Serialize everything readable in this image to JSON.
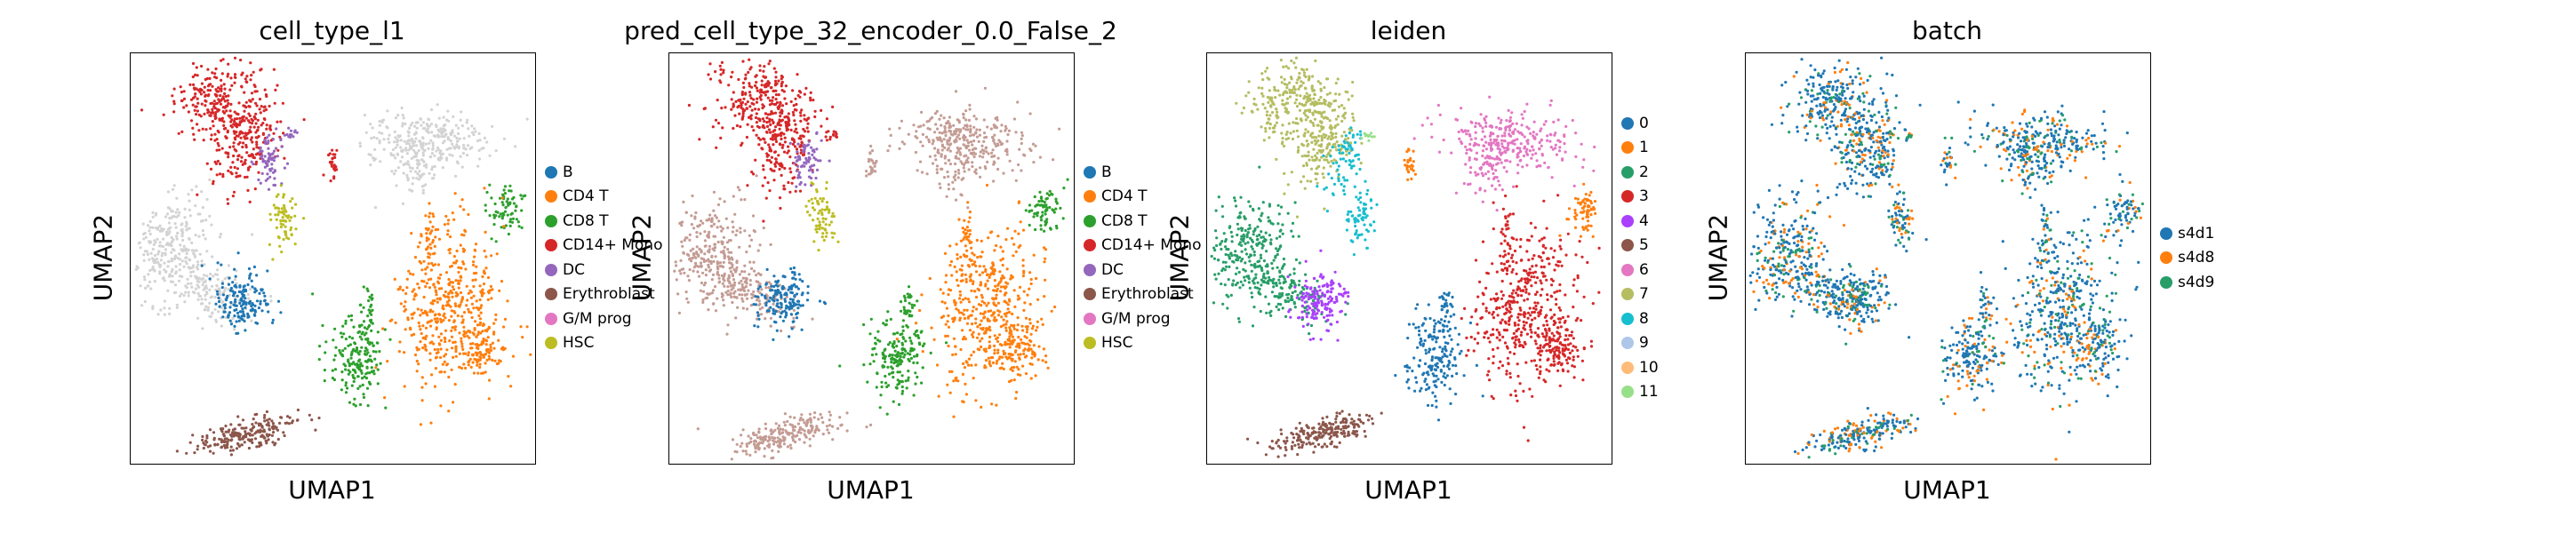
{
  "chart_data": [
    {
      "type": "scatter",
      "title": "cell_type_l1",
      "xlabel": "UMAP1",
      "ylabel": "UMAP2",
      "legend": [
        "B",
        "CD4 T",
        "CD8 T",
        "CD14+ Mono",
        "DC",
        "Erythroblast",
        "G/M prog",
        "HSC"
      ],
      "colors": [
        "#1f77b4",
        "#ff7f0e",
        "#2ca02c",
        "#d62728",
        "#9467bd",
        "#8c564b",
        "#e377c2",
        "#bcbd22"
      ],
      "unlabeled_color": "#d3d3d3"
    },
    {
      "type": "scatter",
      "title": "pred_cell_type_32_encoder_0.0_False_2",
      "xlabel": "UMAP1",
      "ylabel": "UMAP2",
      "legend": [
        "B",
        "CD4 T",
        "CD8 T",
        "CD14+ Mono",
        "DC",
        "Erythroblast",
        "G/M prog",
        "HSC"
      ],
      "colors": [
        "#1f77b4",
        "#ff7f0e",
        "#2ca02c",
        "#d62728",
        "#9467bd",
        "#8c564b",
        "#e377c2",
        "#bcbd22"
      ],
      "unlabeled_color": "#c49c94"
    },
    {
      "type": "scatter",
      "title": "leiden",
      "xlabel": "UMAP1",
      "ylabel": "UMAP2",
      "legend": [
        "0",
        "1",
        "2",
        "3",
        "4",
        "5",
        "6",
        "7",
        "8",
        "9",
        "10",
        "11"
      ],
      "colors": [
        "#1f77b4",
        "#ff7f0e",
        "#279e68",
        "#d62728",
        "#aa40fc",
        "#8c564b",
        "#e377c2",
        "#b5bd61",
        "#17becf",
        "#aec7e8",
        "#ffbb78",
        "#98df8a"
      ]
    },
    {
      "type": "scatter",
      "title": "batch",
      "xlabel": "UMAP1",
      "ylabel": "UMAP2",
      "legend": [
        "s4d1",
        "s4d8",
        "s4d9"
      ],
      "colors": [
        "#1f77b4",
        "#ff7f0e",
        "#279e68"
      ]
    }
  ]
}
